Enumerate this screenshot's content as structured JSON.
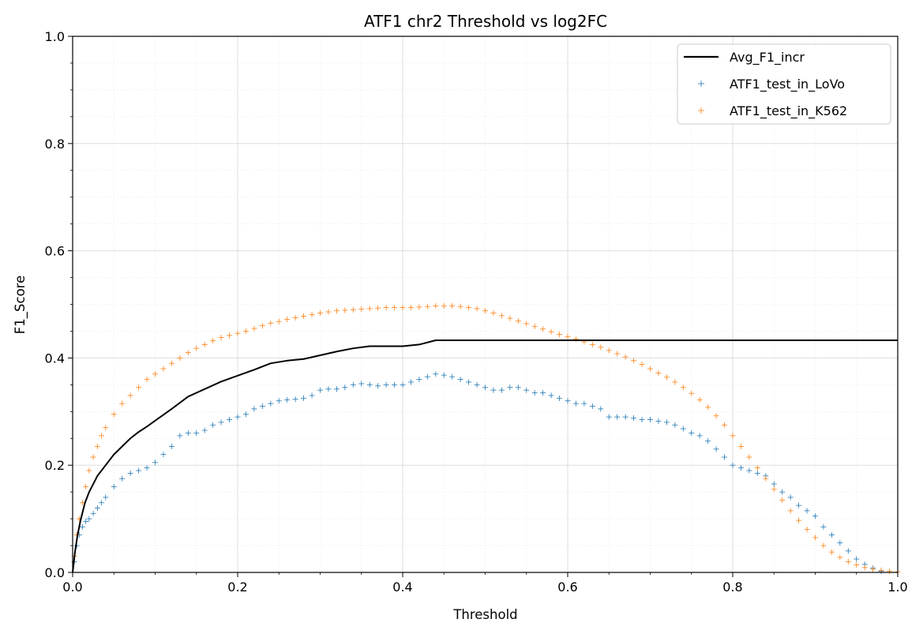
{
  "chart_data": {
    "type": "scatter",
    "title": "ATF1 chr2 Threshold vs log2FC",
    "xlabel": "Threshold",
    "ylabel": "F1_Score",
    "xlim": [
      0.0,
      1.0
    ],
    "ylim": [
      0.0,
      1.0
    ],
    "grid": "major and minor",
    "legend_position": "top-right",
    "xticks": [
      0.0,
      0.2,
      0.4,
      0.6,
      0.8,
      1.0
    ],
    "yticks": [
      0.0,
      0.2,
      0.4,
      0.6,
      0.8,
      1.0
    ],
    "xtick_labels": [
      "0.0",
      "0.2",
      "0.4",
      "0.6",
      "0.8",
      "1.0"
    ],
    "ytick_labels": [
      "0.0",
      "0.2",
      "0.4",
      "0.6",
      "0.8",
      "1.0"
    ],
    "series": [
      {
        "name": "Avg_F1_incr",
        "kind": "line",
        "color": "#000000",
        "x": [
          0.0,
          0.003,
          0.006,
          0.01,
          0.015,
          0.02,
          0.03,
          0.04,
          0.05,
          0.06,
          0.07,
          0.08,
          0.09,
          0.1,
          0.12,
          0.14,
          0.16,
          0.18,
          0.2,
          0.22,
          0.24,
          0.26,
          0.28,
          0.3,
          0.32,
          0.34,
          0.36,
          0.38,
          0.4,
          0.42,
          0.44,
          0.5,
          0.6,
          0.7,
          0.8,
          0.9,
          1.0
        ],
        "y": [
          0.0,
          0.04,
          0.07,
          0.1,
          0.13,
          0.15,
          0.18,
          0.2,
          0.22,
          0.235,
          0.25,
          0.262,
          0.272,
          0.283,
          0.305,
          0.328,
          0.342,
          0.356,
          0.367,
          0.378,
          0.39,
          0.395,
          0.398,
          0.405,
          0.412,
          0.418,
          0.422,
          0.422,
          0.422,
          0.425,
          0.433,
          0.433,
          0.433,
          0.433,
          0.433,
          0.433,
          0.433
        ]
      },
      {
        "name": "ATF1_test_in_LoVo",
        "kind": "scatter",
        "marker": "+",
        "color": "#1f77b4",
        "x": [
          0.002,
          0.005,
          0.008,
          0.012,
          0.016,
          0.02,
          0.025,
          0.03,
          0.035,
          0.04,
          0.05,
          0.06,
          0.07,
          0.08,
          0.09,
          0.1,
          0.11,
          0.12,
          0.13,
          0.14,
          0.15,
          0.16,
          0.17,
          0.18,
          0.19,
          0.2,
          0.21,
          0.22,
          0.23,
          0.24,
          0.25,
          0.26,
          0.27,
          0.28,
          0.29,
          0.3,
          0.31,
          0.32,
          0.33,
          0.34,
          0.35,
          0.36,
          0.37,
          0.38,
          0.39,
          0.4,
          0.41,
          0.42,
          0.43,
          0.44,
          0.45,
          0.46,
          0.47,
          0.48,
          0.49,
          0.5,
          0.51,
          0.52,
          0.53,
          0.54,
          0.55,
          0.56,
          0.57,
          0.58,
          0.59,
          0.6,
          0.61,
          0.62,
          0.63,
          0.64,
          0.65,
          0.66,
          0.67,
          0.68,
          0.69,
          0.7,
          0.71,
          0.72,
          0.73,
          0.74,
          0.75,
          0.76,
          0.77,
          0.78,
          0.79,
          0.8,
          0.81,
          0.82,
          0.83,
          0.84,
          0.85,
          0.86,
          0.87,
          0.88,
          0.89,
          0.9,
          0.91,
          0.92,
          0.93,
          0.94,
          0.95,
          0.96,
          0.97,
          0.98
        ],
        "y": [
          0.02,
          0.05,
          0.07,
          0.085,
          0.095,
          0.1,
          0.11,
          0.12,
          0.13,
          0.14,
          0.16,
          0.175,
          0.185,
          0.19,
          0.195,
          0.205,
          0.22,
          0.235,
          0.255,
          0.26,
          0.26,
          0.265,
          0.275,
          0.28,
          0.285,
          0.29,
          0.295,
          0.305,
          0.31,
          0.315,
          0.32,
          0.322,
          0.323,
          0.325,
          0.33,
          0.34,
          0.342,
          0.342,
          0.345,
          0.35,
          0.352,
          0.35,
          0.348,
          0.35,
          0.35,
          0.35,
          0.355,
          0.36,
          0.365,
          0.37,
          0.368,
          0.365,
          0.36,
          0.355,
          0.35,
          0.345,
          0.34,
          0.34,
          0.345,
          0.345,
          0.34,
          0.335,
          0.335,
          0.33,
          0.325,
          0.32,
          0.315,
          0.315,
          0.31,
          0.305,
          0.29,
          0.29,
          0.29,
          0.288,
          0.285,
          0.285,
          0.282,
          0.28,
          0.275,
          0.268,
          0.26,
          0.255,
          0.245,
          0.23,
          0.215,
          0.2,
          0.195,
          0.19,
          0.185,
          0.18,
          0.165,
          0.15,
          0.14,
          0.125,
          0.115,
          0.105,
          0.085,
          0.07,
          0.055,
          0.04,
          0.025,
          0.015,
          0.008,
          0.002
        ]
      },
      {
        "name": "ATF1_test_in_K562",
        "kind": "scatter",
        "marker": "+",
        "color": "#ff7f0e",
        "x": [
          0.002,
          0.005,
          0.008,
          0.012,
          0.016,
          0.02,
          0.025,
          0.03,
          0.035,
          0.04,
          0.05,
          0.06,
          0.07,
          0.08,
          0.09,
          0.1,
          0.11,
          0.12,
          0.13,
          0.14,
          0.15,
          0.16,
          0.17,
          0.18,
          0.19,
          0.2,
          0.21,
          0.22,
          0.23,
          0.24,
          0.25,
          0.26,
          0.27,
          0.28,
          0.29,
          0.3,
          0.31,
          0.32,
          0.33,
          0.34,
          0.35,
          0.36,
          0.37,
          0.38,
          0.39,
          0.4,
          0.41,
          0.42,
          0.43,
          0.44,
          0.45,
          0.46,
          0.47,
          0.48,
          0.49,
          0.5,
          0.51,
          0.52,
          0.53,
          0.54,
          0.55,
          0.56,
          0.57,
          0.58,
          0.59,
          0.6,
          0.61,
          0.62,
          0.63,
          0.64,
          0.65,
          0.66,
          0.67,
          0.68,
          0.69,
          0.7,
          0.71,
          0.72,
          0.73,
          0.74,
          0.75,
          0.76,
          0.77,
          0.78,
          0.79,
          0.8,
          0.81,
          0.82,
          0.83,
          0.84,
          0.85,
          0.86,
          0.87,
          0.88,
          0.89,
          0.9,
          0.91,
          0.92,
          0.93,
          0.94,
          0.95,
          0.96,
          0.97,
          0.98,
          0.99,
          1.0
        ],
        "y": [
          0.03,
          0.07,
          0.1,
          0.13,
          0.16,
          0.19,
          0.215,
          0.235,
          0.255,
          0.27,
          0.295,
          0.315,
          0.33,
          0.345,
          0.36,
          0.37,
          0.38,
          0.39,
          0.4,
          0.41,
          0.418,
          0.425,
          0.432,
          0.438,
          0.442,
          0.446,
          0.45,
          0.455,
          0.46,
          0.465,
          0.468,
          0.472,
          0.475,
          0.478,
          0.481,
          0.484,
          0.486,
          0.488,
          0.489,
          0.49,
          0.491,
          0.492,
          0.493,
          0.494,
          0.494,
          0.494,
          0.494,
          0.495,
          0.496,
          0.497,
          0.497,
          0.497,
          0.496,
          0.494,
          0.492,
          0.488,
          0.484,
          0.479,
          0.474,
          0.469,
          0.464,
          0.459,
          0.454,
          0.449,
          0.444,
          0.44,
          0.435,
          0.43,
          0.425,
          0.42,
          0.414,
          0.408,
          0.402,
          0.395,
          0.388,
          0.38,
          0.372,
          0.364,
          0.355,
          0.345,
          0.334,
          0.322,
          0.308,
          0.292,
          0.275,
          0.255,
          0.235,
          0.215,
          0.195,
          0.175,
          0.155,
          0.135,
          0.115,
          0.097,
          0.08,
          0.065,
          0.05,
          0.038,
          0.028,
          0.02,
          0.014,
          0.009,
          0.006,
          0.004,
          0.002,
          0.001
        ]
      }
    ]
  }
}
